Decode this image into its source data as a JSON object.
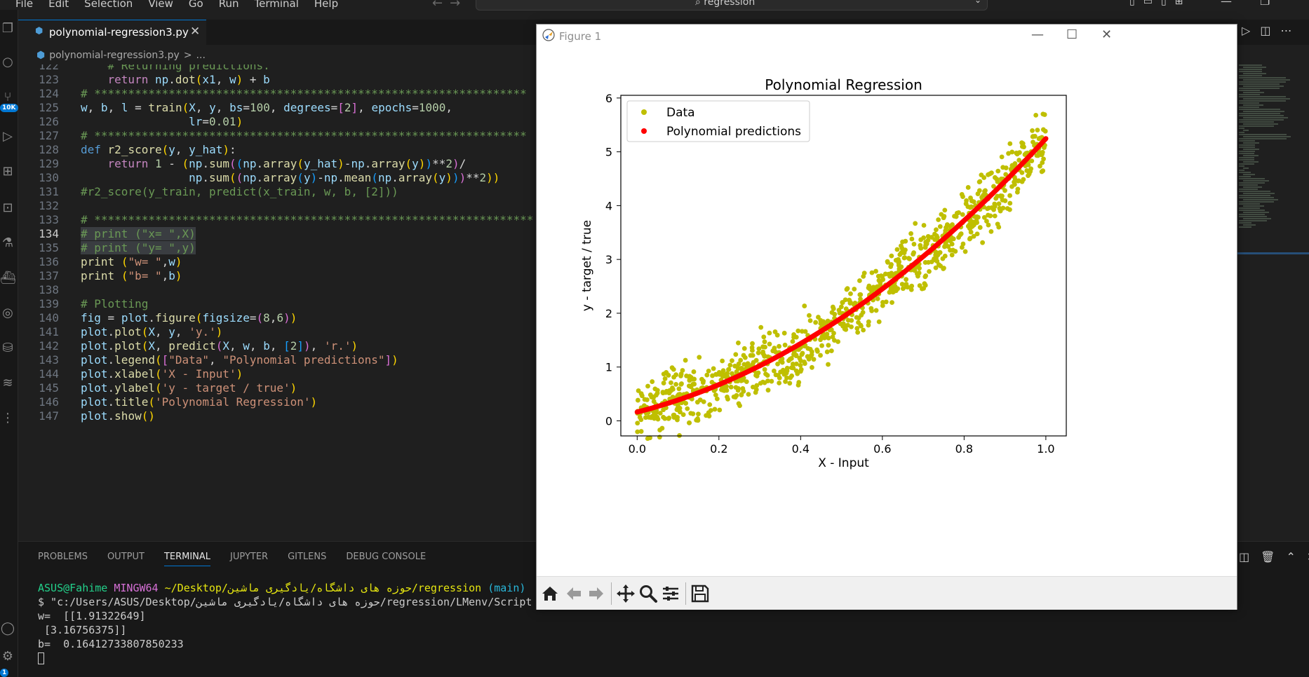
{
  "menu": {
    "items": [
      "File",
      "Edit",
      "Selection",
      "View",
      "Go",
      "Run",
      "Terminal",
      "Help"
    ]
  },
  "command_center": {
    "query": "regression"
  },
  "tab": {
    "label": "polynomial-regression3.py"
  },
  "breadcrumb": {
    "file": "polynomial-regression3.py",
    "sep": ">",
    "rest": "..."
  },
  "activity_badges": {
    "source_control": "10K",
    "accounts": "1"
  },
  "editor": {
    "current_line": 134,
    "lines": [
      {
        "n": 122,
        "text": "    # Returning predictions."
      },
      {
        "n": 123,
        "text": "    return np.dot(x1, w) + b"
      },
      {
        "n": 124,
        "text": "# ****************************************************************"
      },
      {
        "n": 125,
        "text": "w, b, l = train(X, y, bs=100, degrees=[2], epochs=1000,"
      },
      {
        "n": 126,
        "text": "                lr=0.01)"
      },
      {
        "n": 127,
        "text": "# ****************************************************************"
      },
      {
        "n": 128,
        "text": "def r2_score(y, y_hat):"
      },
      {
        "n": 129,
        "text": "    return 1 - (np.sum((np.array(y_hat)-np.array(y))**2)/"
      },
      {
        "n": 130,
        "text": "                np.sum((np.array(y)-np.mean(np.array(y)))**2))"
      },
      {
        "n": 131,
        "text": "#r2_score(y_train, predict(x_train, w, b, [2]))"
      },
      {
        "n": 132,
        "text": ""
      },
      {
        "n": 133,
        "text": "# *****************************************************************"
      },
      {
        "n": 134,
        "text": "# print (\"x= \",X)"
      },
      {
        "n": 135,
        "text": "# print (\"y= \",y)"
      },
      {
        "n": 136,
        "text": "print (\"w= \",w)"
      },
      {
        "n": 137,
        "text": "print (\"b= \",b)"
      },
      {
        "n": 138,
        "text": ""
      },
      {
        "n": 139,
        "text": "# Plotting"
      },
      {
        "n": 140,
        "text": "fig = plot.figure(figsize=(8,6))"
      },
      {
        "n": 141,
        "text": "plot.plot(X, y, 'y.')"
      },
      {
        "n": 142,
        "text": "plot.plot(X, predict(X, w, b, [2]), 'r.')"
      },
      {
        "n": 143,
        "text": "plot.legend([\"Data\", \"Polynomial predictions\"])"
      },
      {
        "n": 144,
        "text": "plot.xlabel('X - Input')"
      },
      {
        "n": 145,
        "text": "plot.ylabel('y - target / true')"
      },
      {
        "n": 146,
        "text": "plot.title('Polynomial Regression')"
      },
      {
        "n": 147,
        "text": "plot.show()"
      }
    ]
  },
  "panel": {
    "tabs": [
      "PROBLEMS",
      "OUTPUT",
      "TERMINAL",
      "JUPYTER",
      "GITLENS",
      "DEBUG CONSOLE"
    ],
    "active_tab": "TERMINAL"
  },
  "terminal": {
    "prompt_user": "ASUS@Fahime",
    "prompt_host": "MINGW64",
    "prompt_path": "~/Desktop/حوزه های داشگاه/یادگیری ماشین/regression",
    "prompt_branch": "(main)",
    "command": "$ \"c:/Users/ASUS/Desktop/حوزه های داشگاه/یادگیری ماشین/regression/LMenv/Script",
    "output": [
      "w=  [[1.91322649]",
      " [3.16756375]]",
      "b=  0.16412733807850233"
    ]
  },
  "figure": {
    "window_title": "Figure 1",
    "toolbar_icons": [
      "home-icon",
      "back-icon",
      "forward-icon",
      "pan-icon",
      "zoom-icon",
      "configure-subplots-icon",
      "save-icon"
    ]
  },
  "chart_data": {
    "type": "scatter",
    "title": "Polynomial Regression",
    "xlabel": "X - Input",
    "ylabel": "y - target / true",
    "xlim": [
      -0.04,
      1.05
    ],
    "ylim": [
      -0.28,
      6.05
    ],
    "xticks": [
      "0.0",
      "0.2",
      "0.4",
      "0.6",
      "0.8",
      "1.0"
    ],
    "xtick_values": [
      0.0,
      0.2,
      0.4,
      0.6,
      0.8,
      1.0
    ],
    "yticks": [
      "0",
      "1",
      "2",
      "3",
      "4",
      "5",
      "6"
    ],
    "ytick_values": [
      0,
      1,
      2,
      3,
      4,
      5,
      6
    ],
    "legend_position": "upper-left",
    "series": [
      {
        "name": "Data",
        "color": "#bfbf00",
        "marker": "point",
        "trend": "y = 0.164 + 1.913*x + 3.168*x^2 plus noise of about ±0.5",
        "x": [
          0.0,
          0.02,
          0.04,
          0.06,
          0.08,
          0.1,
          0.12,
          0.14,
          0.16,
          0.18,
          0.2,
          0.22,
          0.24,
          0.26,
          0.28,
          0.3,
          0.32,
          0.34,
          0.36,
          0.38,
          0.4,
          0.42,
          0.44,
          0.46,
          0.48,
          0.5,
          0.52,
          0.54,
          0.56,
          0.58,
          0.6,
          0.62,
          0.64,
          0.66,
          0.68,
          0.7,
          0.72,
          0.74,
          0.76,
          0.78,
          0.8,
          0.82,
          0.84,
          0.86,
          0.88,
          0.9,
          0.92,
          0.94,
          0.96,
          0.98,
          1.0
        ],
        "y": [
          0.5,
          0.3,
          0.8,
          0.9,
          0.2,
          0.6,
          0.9,
          0.3,
          1.0,
          0.5,
          0.8,
          0.4,
          1.1,
          0.6,
          1.2,
          0.8,
          1.3,
          0.7,
          1.1,
          1.6,
          1.3,
          1.0,
          1.7,
          1.2,
          1.8,
          1.4,
          2.2,
          1.6,
          2.3,
          1.9,
          2.5,
          2.7,
          3.0,
          2.4,
          3.2,
          2.8,
          3.6,
          3.0,
          3.5,
          3.9,
          3.6,
          4.0,
          4.4,
          3.9,
          4.7,
          4.6,
          5.1,
          4.8,
          5.5,
          5.0,
          5.6
        ]
      },
      {
        "name": "Polynomial predictions",
        "color": "#ff0000",
        "marker": "point",
        "x": [
          0.0,
          0.1,
          0.2,
          0.3,
          0.4,
          0.5,
          0.6,
          0.7,
          0.8,
          0.9,
          1.0
        ],
        "y": [
          0.164,
          0.387,
          0.674,
          1.024,
          1.437,
          1.913,
          2.453,
          3.056,
          3.722,
          4.452,
          5.245
        ]
      }
    ]
  }
}
